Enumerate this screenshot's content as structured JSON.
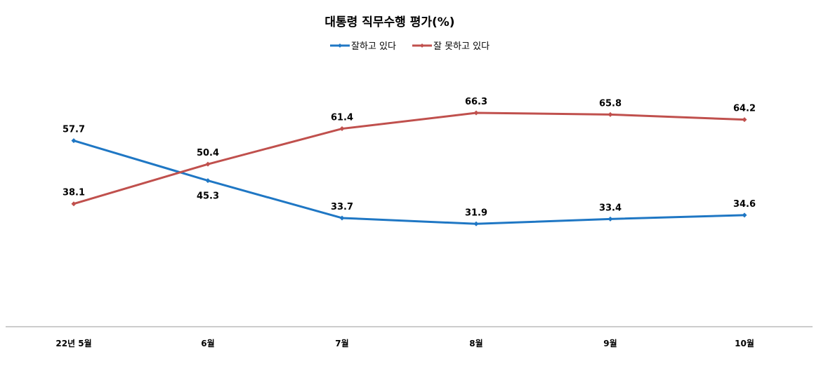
{
  "chart_data": {
    "type": "line",
    "title": "대통령 직무수행 평가(%)",
    "xlabel": "",
    "ylabel": "",
    "ylim": [
      0,
      90
    ],
    "grid": false,
    "legend_position": "top",
    "categories": [
      "22년 5월",
      "6월",
      "7월",
      "8월",
      "9월",
      "10월"
    ],
    "series": [
      {
        "name": "잘하고 있다",
        "color": "#1F77C4",
        "values": [
          57.7,
          45.3,
          33.7,
          31.9,
          33.4,
          34.6
        ],
        "data_labels": [
          "57.7",
          "45.3",
          "33.7",
          "31.9",
          "33.4",
          "34.6"
        ],
        "label_positions": [
          "above",
          "below",
          "above",
          "above",
          "above",
          "above"
        ]
      },
      {
        "name": "잘 못하고 있다",
        "color": "#C0504D",
        "values": [
          38.1,
          50.4,
          61.4,
          66.3,
          65.8,
          64.2
        ],
        "data_labels": [
          "38.1",
          "50.4",
          "61.4",
          "66.3",
          "65.8",
          "64.2"
        ],
        "label_positions": [
          "above",
          "above",
          "above",
          "above",
          "above",
          "above"
        ]
      }
    ]
  }
}
